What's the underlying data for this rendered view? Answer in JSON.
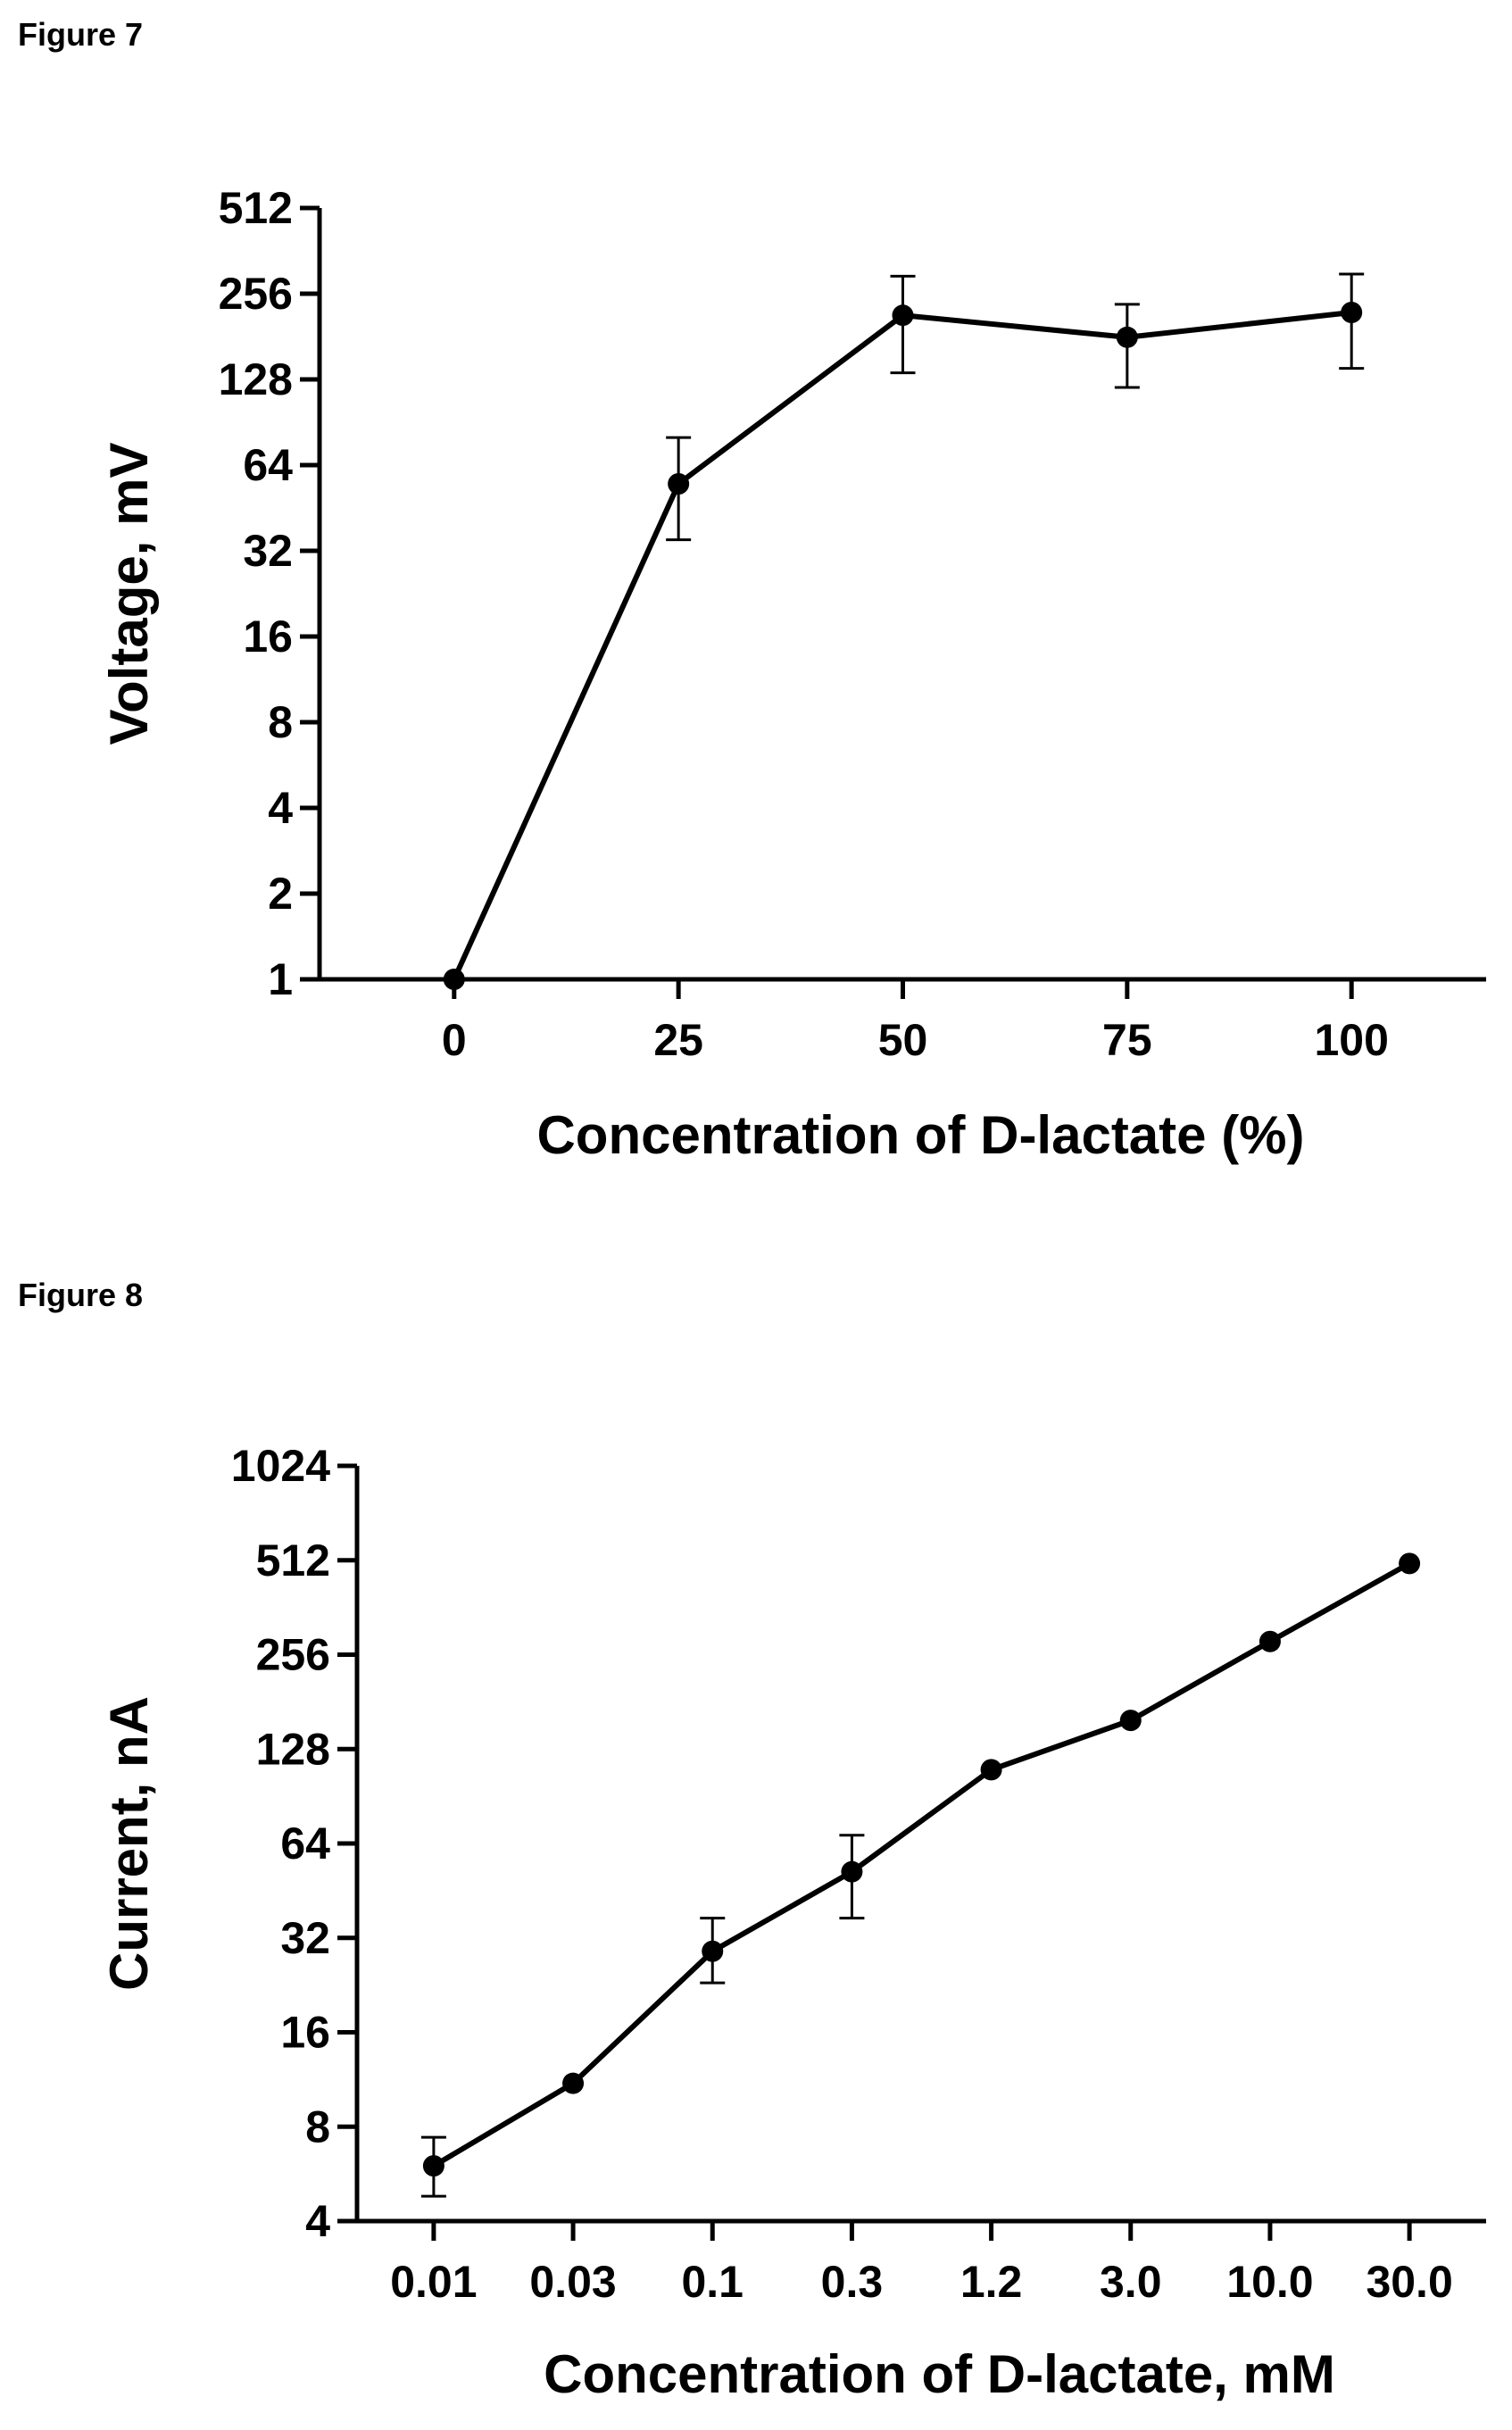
{
  "figures": [
    {
      "label": "Figure 7"
    },
    {
      "label": "Figure 8"
    }
  ],
  "chart_data": [
    {
      "type": "line",
      "title": "",
      "xlabel": "Concentration of D-lactate (%)",
      "ylabel": "Voltage, mV",
      "y_scale": "log2",
      "ylim": [
        1,
        512
      ],
      "yticks": [
        "1",
        "2",
        "4",
        "8",
        "16",
        "32",
        "64",
        "128",
        "256",
        "512"
      ],
      "xlim": [
        -15,
        115
      ],
      "xticks": [
        "0",
        "25",
        "50",
        "75",
        "100"
      ],
      "grid": false,
      "series": [
        {
          "x": [
            0,
            25,
            50,
            75,
            100
          ],
          "y": [
            1,
            55,
            215,
            180,
            220
          ],
          "err_low": [
            1,
            35,
            135,
            120,
            140
          ],
          "err_high": [
            1,
            80,
            295,
            235,
            300
          ]
        }
      ]
    },
    {
      "type": "line",
      "title": "",
      "xlabel": "Concentration of D-lactate, mM",
      "ylabel": "Current, nA",
      "y_scale": "log2",
      "ylim": [
        4,
        1024
      ],
      "yticks": [
        "4",
        "8",
        "16",
        "32",
        "64",
        "128",
        "256",
        "512",
        "1024"
      ],
      "x_scale": "categorical",
      "categories": [
        "0.01",
        "0.03",
        "0.1",
        "0.3",
        "1.2",
        "3.0",
        "10.0",
        "30.0"
      ],
      "grid": false,
      "series": [
        {
          "values": [
            6,
            11,
            29,
            52,
            110,
            158,
            282,
            500
          ],
          "err_low": [
            4.8,
            11,
            23,
            37,
            110,
            158,
            282,
            500
          ],
          "err_high": [
            7.4,
            11,
            37,
            68,
            110,
            158,
            282,
            500
          ]
        }
      ]
    }
  ]
}
